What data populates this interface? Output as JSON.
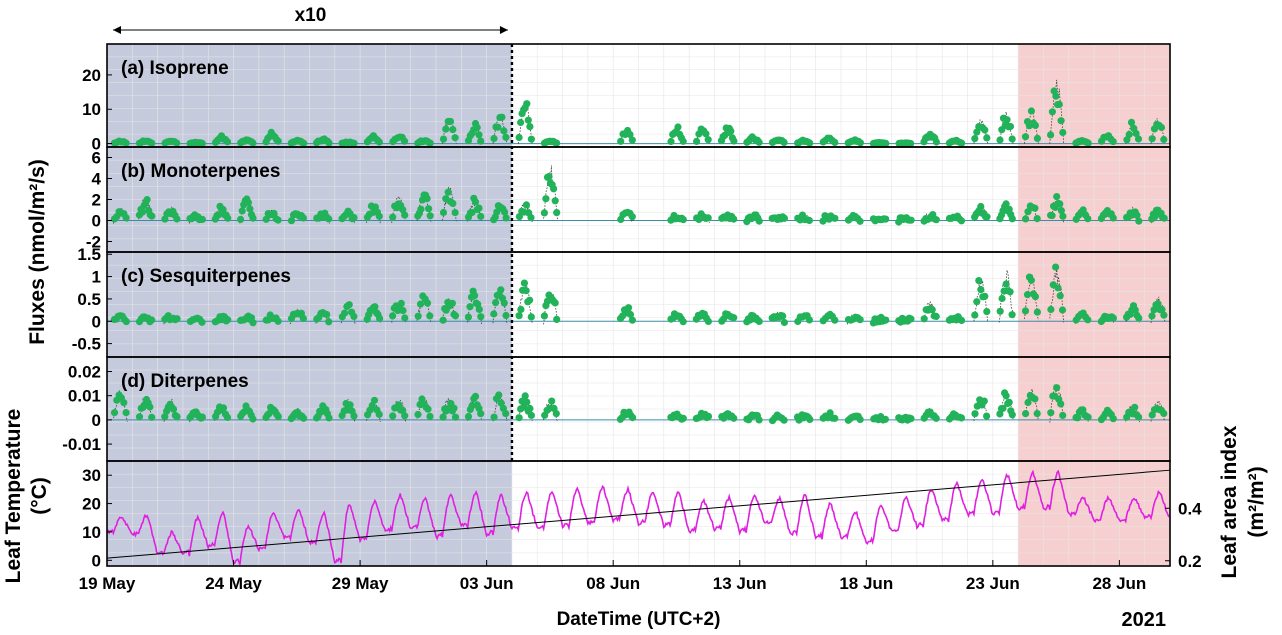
{
  "chart_data": {
    "type": "scatter",
    "x_label": "DateTime (UTC+2)",
    "year_label": "2021",
    "x_ticks": [
      "19 May",
      "24 May",
      "29 May",
      "03 Jun",
      "08 Jun",
      "13 Jun",
      "18 Jun",
      "23 Jun",
      "28 Jun"
    ],
    "shared_y_label": "Fluxes (nmol/m²/s)",
    "annotation": "x10",
    "colors": {
      "flux_points": "#22b35a",
      "flux_line": "#3a3a3a",
      "zero_line": "#3c8ca8",
      "temperature": "#e020e0",
      "lai_line": "#000000",
      "shade_x10": "#c5cbdc",
      "shade_end": "#f6d0d0",
      "divider": "#000000"
    },
    "x_range_days": [
      0,
      42
    ],
    "shaded_periods": [
      {
        "name": "x10",
        "start": "19 May",
        "end": "04 Jun"
      },
      {
        "name": "end",
        "start": "24 Jun",
        "end": "30 Jun"
      }
    ],
    "panels": [
      {
        "title": "(a) Isoprene",
        "ylim": [
          -1,
          29
        ],
        "yticks": [
          "0",
          "10",
          "20"
        ],
        "daily_peak": [
          0.8,
          0.9,
          1.0,
          0.4,
          2.5,
          1.2,
          3.5,
          1.0,
          1.5,
          0.5,
          2.5,
          3.0,
          1.0,
          8.0,
          6.0,
          9.5,
          12.5,
          1.0,
          0.0,
          0.0,
          4.0,
          0.0,
          5.0,
          4.5,
          5.0,
          2.0,
          1.5,
          1.0,
          2.0,
          1.2,
          0.3,
          0.2,
          3.5,
          1.0,
          7.5,
          9.5,
          10.5,
          20.0,
          1.0,
          3.0,
          6.5,
          8.0,
          10.5,
          8.5
        ]
      },
      {
        "title": "(b) Monoterpenes",
        "ylim": [
          -3,
          7
        ],
        "yticks": [
          "-2",
          "0",
          "2",
          "4",
          "6"
        ],
        "daily_peak": [
          1.0,
          2.2,
          1.0,
          0.5,
          1.3,
          2.2,
          1.0,
          0.9,
          0.7,
          0.8,
          1.5,
          2.5,
          2.7,
          3.5,
          2.0,
          1.5,
          1.8,
          5.5,
          0.0,
          0.0,
          1.0,
          0.0,
          0.6,
          0.6,
          0.5,
          0.5,
          0.4,
          0.4,
          0.5,
          0.4,
          0.2,
          0.2,
          0.5,
          0.5,
          1.3,
          1.6,
          1.5,
          2.2,
          1.0,
          0.8,
          1.0,
          1.1,
          1.2,
          1.6
        ]
      },
      {
        "title": "(c) Sesquiterpenes",
        "ylim": [
          -0.8,
          1.55
        ],
        "yticks": [
          "-0.5",
          "0",
          "0.5",
          "1",
          "1.5"
        ],
        "daily_peak": [
          0.15,
          0.1,
          0.1,
          0.05,
          0.1,
          0.1,
          0.15,
          0.25,
          0.2,
          0.4,
          0.4,
          0.5,
          0.6,
          0.5,
          0.7,
          0.8,
          0.9,
          0.8,
          0.0,
          0.0,
          0.35,
          0.0,
          0.2,
          0.2,
          0.2,
          0.15,
          0.15,
          0.15,
          0.15,
          0.1,
          0.05,
          0.05,
          0.45,
          0.1,
          1.0,
          1.2,
          1.1,
          1.25,
          0.2,
          0.15,
          0.35,
          0.55,
          0.65,
          0.5
        ]
      },
      {
        "title": "(d) Diterpenes",
        "ylim": [
          -0.017,
          0.026
        ],
        "yticks": [
          "-0.01",
          "0",
          "0.01",
          "0.02"
        ],
        "daily_peak": [
          0.012,
          0.01,
          0.008,
          0.004,
          0.006,
          0.006,
          0.005,
          0.004,
          0.006,
          0.008,
          0.009,
          0.009,
          0.01,
          0.009,
          0.01,
          0.012,
          0.01,
          0.009,
          0.0,
          0.0,
          0.004,
          0.0,
          0.003,
          0.003,
          0.003,
          0.002,
          0.002,
          0.002,
          0.003,
          0.002,
          0.001,
          0.001,
          0.004,
          0.002,
          0.01,
          0.012,
          0.013,
          0.017,
          0.004,
          0.004,
          0.006,
          0.008,
          0.012,
          0.008
        ]
      }
    ],
    "temperature_panel": {
      "y_label": "Leaf Temperature (°C)",
      "ylim": [
        -2,
        35
      ],
      "yticks": [
        "0",
        "10",
        "20",
        "30"
      ],
      "daily_max": [
        15,
        16,
        10,
        15,
        17,
        12,
        17,
        18,
        17,
        20,
        21,
        23,
        22,
        23,
        24,
        23,
        24,
        24,
        25,
        26,
        25,
        24,
        24,
        21,
        22,
        23,
        22,
        23,
        20,
        17,
        19,
        22,
        25,
        27,
        29,
        30,
        31,
        31,
        22,
        22,
        22,
        24,
        23,
        23
      ],
      "daily_min": [
        10,
        9,
        2,
        2,
        5,
        -1,
        4,
        8,
        6,
        -1,
        7,
        10,
        11,
        8,
        12,
        9,
        11,
        11,
        12,
        13,
        14,
        13,
        12,
        10,
        11,
        10,
        13,
        9,
        8,
        8,
        6,
        10,
        12,
        14,
        16,
        16,
        18,
        18,
        16,
        14,
        14,
        15,
        14,
        16
      ]
    },
    "lai_axis": {
      "label": "Leaf area index (m²/m²)",
      "yticks": [
        "0.2",
        "0.4"
      ],
      "ylim": [
        0.18,
        0.58
      ],
      "start": 0.21,
      "end": 0.545
    }
  }
}
